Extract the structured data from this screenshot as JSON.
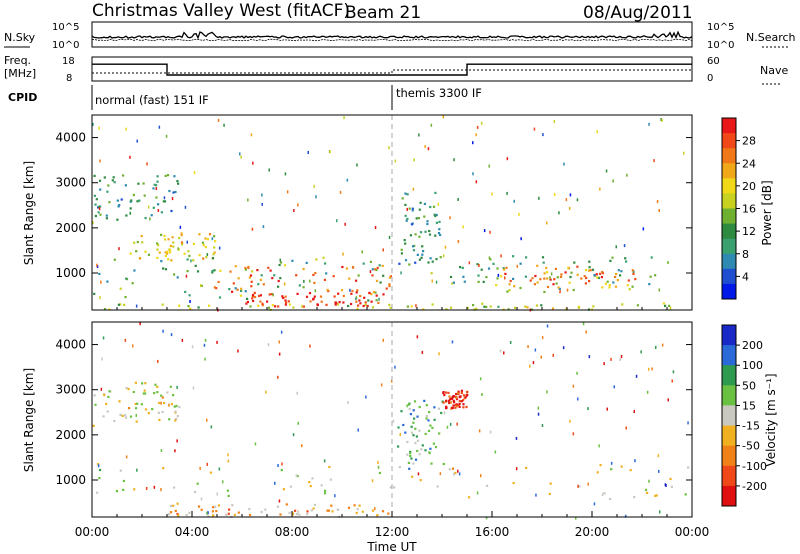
{
  "header": {
    "title": "Christmas Valley West (fitACF)",
    "beam": "Beam 21",
    "date": "08/Aug/2011"
  },
  "panel_labels": {
    "nsky": "N.Sky",
    "nsearch": "N.Search",
    "freq_line1": "Freq.",
    "freq_line2": "[MHz]",
    "nave": "Nave",
    "cpid": "CPID",
    "nsky_ticks": [
      "10^5",
      "10^0"
    ],
    "nsearch_ticks": [
      "10^5",
      "10^0"
    ],
    "freq_ticks": [
      "18",
      "8"
    ],
    "nave_ticks": [
      "60",
      "0"
    ]
  },
  "cpid_modes": [
    {
      "label": "normal (fast) 151 IF",
      "start": 0,
      "end": 12
    },
    {
      "label": "themis 3300 IF",
      "start": 12,
      "end": 24
    }
  ],
  "status_data": {
    "freq_segments": [
      {
        "start": 0,
        "end": 3,
        "value": 15
      },
      {
        "start": 3,
        "end": 12,
        "value": 10.5
      },
      {
        "start": 12,
        "end": 15,
        "value": 10.5
      },
      {
        "start": 15,
        "end": 24,
        "value": 15
      }
    ]
  },
  "chart_data": [
    {
      "type": "heatmap",
      "quantity": "power",
      "xlabel": "",
      "ylabel": "Slant Range [km]",
      "xlim": [
        0,
        24
      ],
      "ylim": [
        180,
        4500
      ],
      "yticks": [
        "1000",
        "2000",
        "3000",
        "4000"
      ],
      "colorbar": {
        "label": "Power [dB]",
        "ticks": [
          "4",
          "8",
          "12",
          "16",
          "20",
          "24",
          "28"
        ],
        "colors": [
          "#0018e8",
          "#1f4fd0",
          "#2e8ab0",
          "#3aa070",
          "#2e8a40",
          "#70b030",
          "#c8d020",
          "#f0d818",
          "#f0a818",
          "#f07818",
          "#f04818",
          "#e81818"
        ]
      },
      "regions": [
        {
          "x": [
            0,
            3.5
          ],
          "y": [
            2200,
            3200
          ],
          "level": 0.3
        },
        {
          "x": [
            1.5,
            5
          ],
          "y": [
            1300,
            1900
          ],
          "level": 0.6
        },
        {
          "x": [
            0,
            24
          ],
          "y": [
            200,
            350
          ],
          "level": 0.5
        },
        {
          "x": [
            0,
            11.8
          ],
          "y": [
            400,
            1400
          ],
          "level": 0.35
        },
        {
          "x": [
            4.5,
            12
          ],
          "y": [
            500,
            1200
          ],
          "level": 0.82
        },
        {
          "x": [
            6,
            11.5
          ],
          "y": [
            280,
            600
          ],
          "level": 0.95
        },
        {
          "x": [
            12.2,
            14
          ],
          "y": [
            1200,
            2800
          ],
          "level": 0.3
        },
        {
          "x": [
            13.5,
            22.5
          ],
          "y": [
            600,
            1400
          ],
          "level": 0.35
        },
        {
          "x": [
            16,
            21.8
          ],
          "y": [
            700,
            1200
          ],
          "level": 0.78
        }
      ]
    },
    {
      "type": "heatmap",
      "quantity": "velocity",
      "xlabel": "Time UT",
      "ylabel": "Slant Range [km]",
      "xlim": [
        0,
        24
      ],
      "ylim": [
        180,
        4500
      ],
      "xticks": [
        "00:00",
        "04:00",
        "08:00",
        "12:00",
        "16:00",
        "20:00",
        "00:00"
      ],
      "yticks": [
        "1000",
        "2000",
        "3000",
        "4000"
      ],
      "colorbar": {
        "label": "Velocity [m s⁻¹]",
        "ticks": [
          "200",
          "100",
          "50",
          "15",
          "-15",
          "-50",
          "-100",
          "-200"
        ],
        "colors": [
          "#1a28c8",
          "#2a6ad8",
          "#2e9a50",
          "#6ac040",
          "#c8c8c0",
          "#f0b020",
          "#f08018",
          "#f04818",
          "#e01010"
        ]
      },
      "regions": [
        {
          "x": [
            0,
            3.5
          ],
          "y": [
            2200,
            3200
          ],
          "level": 0.5
        },
        {
          "x": [
            0,
            24
          ],
          "y": [
            600,
            1400
          ],
          "level": 0.5
        },
        {
          "x": [
            3,
            12
          ],
          "y": [
            200,
            500
          ],
          "level": 0.65
        },
        {
          "x": [
            12.2,
            14
          ],
          "y": [
            1200,
            2800
          ],
          "level": 0.35
        },
        {
          "x": [
            14,
            15
          ],
          "y": [
            2600,
            3000
          ],
          "level": 0.92
        }
      ]
    }
  ]
}
